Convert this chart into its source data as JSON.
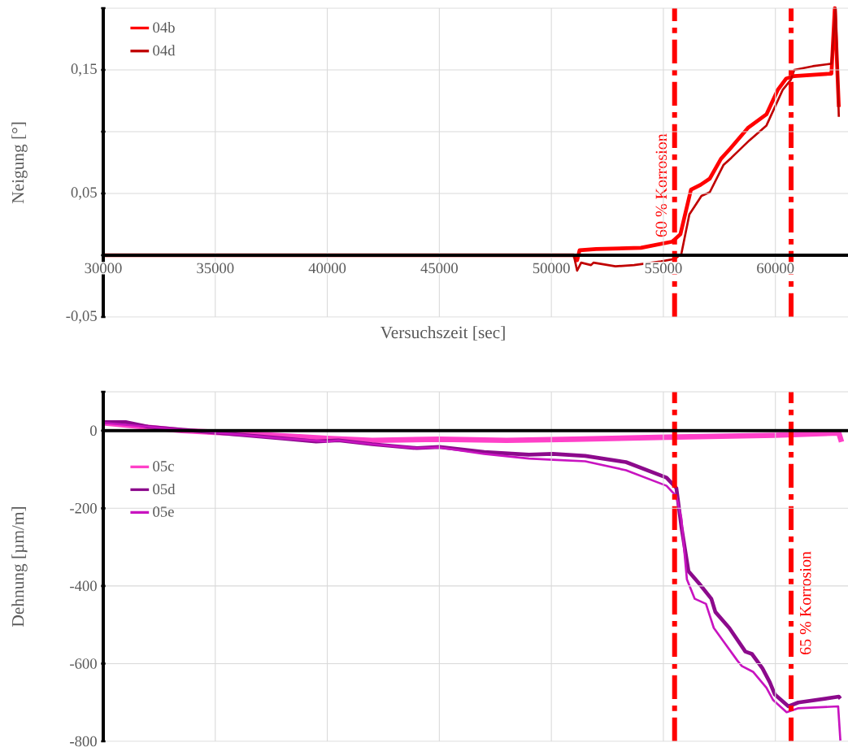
{
  "chart_data": [
    {
      "type": "line",
      "ylabel": "Neigung [°]",
      "xlabel": "Versuchszeit [sec]",
      "xlim": [
        30000,
        63240
      ],
      "xticks": [
        30000,
        35000,
        40000,
        45000,
        50000,
        55000,
        60000
      ],
      "ylim": [
        -0.05,
        0.2
      ],
      "yticks": [
        {
          "value": -0.05,
          "label": "-0,05"
        },
        {
          "value": 0,
          "label": null
        },
        {
          "value": 0.05,
          "label": "0,05"
        },
        {
          "value": 0.1,
          "label": null
        },
        {
          "value": 0.15,
          "label": "0,15"
        },
        {
          "value": 0.2,
          "label": null
        }
      ],
      "grid": true,
      "legend": "top left",
      "series": [
        {
          "name": "04b",
          "color": "#ff0000",
          "x": [
            30000,
            51000,
            51150,
            51260,
            52000,
            54000,
            55400,
            55760,
            56230,
            56660,
            57070,
            57570,
            57970,
            58770,
            59600,
            60110,
            60480,
            60840,
            62500,
            62650,
            62830
          ],
          "values": [
            0,
            0,
            -0.004,
            0.004,
            0.005,
            0.006,
            0.011,
            0.017,
            0.053,
            0.057,
            0.062,
            0.078,
            0.086,
            0.103,
            0.114,
            0.134,
            0.143,
            0.145,
            0.147,
            0.2,
            0.12
          ]
        },
        {
          "name": "04d",
          "color": "#c00000",
          "x": [
            30000,
            51000,
            51150,
            51330,
            51770,
            51880,
            52860,
            53690,
            54890,
            55500,
            55800,
            56160,
            56700,
            57070,
            57680,
            58040,
            58840,
            59600,
            60330,
            60690,
            60840,
            61670,
            62500,
            62690,
            62830
          ],
          "values": [
            0,
            0,
            -0.0125,
            -0.006,
            -0.008,
            -0.006,
            -0.009,
            -0.008,
            -0.005,
            -0.003,
            0.001,
            0.033,
            0.048,
            0.051,
            0.073,
            0.079,
            0.093,
            0.105,
            0.134,
            0.142,
            0.15,
            0.153,
            0.155,
            0.2,
            0.112
          ]
        }
      ],
      "ref_lines": [
        {
          "axis": "x",
          "value": 55500,
          "label": "60 % Korrosion",
          "color": "#ff0000"
        },
        {
          "axis": "x",
          "value": 60700,
          "color": "#ff0000"
        }
      ]
    },
    {
      "type": "line",
      "ylabel": "Dehnung [µm/m]",
      "xlim": [
        30000,
        63240
      ],
      "xticks": [
        30000,
        35000,
        40000,
        45000,
        50000,
        55000,
        60000
      ],
      "ylim": [
        -800,
        100
      ],
      "yticks": [
        -800,
        -600,
        -400,
        -200,
        0,
        {
          "value": 100,
          "label": null
        }
      ],
      "tick_labels": "y",
      "grid": true,
      "legend": "left",
      "series": [
        {
          "name": "05c",
          "color": "#ff40c8",
          "x": [
            30000,
            33500,
            37000,
            40000,
            42000,
            45000,
            48000,
            51000,
            55140,
            60000,
            62830,
            62950
          ],
          "values": [
            20,
            0,
            -10,
            -20,
            -25,
            -22,
            -25,
            -22,
            -17,
            -12,
            -6,
            -29
          ]
        },
        {
          "name": "05d",
          "color": "#8c0a8c",
          "x": [
            30000,
            31000,
            32000,
            34000,
            36000,
            38000,
            39500,
            40500,
            42000,
            44000,
            45000,
            47000,
            49000,
            50060,
            51510,
            53330,
            55140,
            55580,
            55800,
            56120,
            56600,
            57140,
            57320,
            57940,
            58660,
            58950,
            59420,
            59750,
            59970,
            60580,
            61020,
            62830,
            62900
          ],
          "values": [
            22,
            22,
            10,
            0,
            -10,
            -20,
            -28,
            -25,
            -35,
            -45,
            -42,
            -55,
            -62,
            -60,
            -65,
            -81,
            -121,
            -148,
            -246,
            -362,
            -394,
            -433,
            -467,
            -508,
            -569,
            -575,
            -612,
            -648,
            -679,
            -710,
            -700,
            -685,
            -690
          ]
        },
        {
          "name": "05e",
          "color": "#c814c0",
          "x": [
            30000,
            32000,
            34000,
            36000,
            38000,
            40000,
            40500,
            42000,
            44000,
            45000,
            47000,
            49000,
            50060,
            51510,
            53330,
            55140,
            55580,
            55800,
            56050,
            56400,
            56900,
            57250,
            57700,
            58300,
            58500,
            59000,
            59600,
            59900,
            60500,
            61000,
            62800,
            62900
          ],
          "values": [
            20,
            10,
            0,
            -10,
            -20,
            -28,
            -25,
            -35,
            -45,
            -43,
            -60,
            -72,
            -75,
            -79,
            -102,
            -142,
            -169,
            -225,
            -383,
            -433,
            -446,
            -508,
            -544,
            -592,
            -606,
            -621,
            -662,
            -694,
            -725,
            -715,
            -710,
            -798
          ]
        }
      ],
      "ref_lines": [
        {
          "axis": "x",
          "value": 55500,
          "color": "#ff0000"
        },
        {
          "axis": "x",
          "value": 60700,
          "label": "65 % Korrosion",
          "color": "#ff0000"
        }
      ]
    }
  ]
}
